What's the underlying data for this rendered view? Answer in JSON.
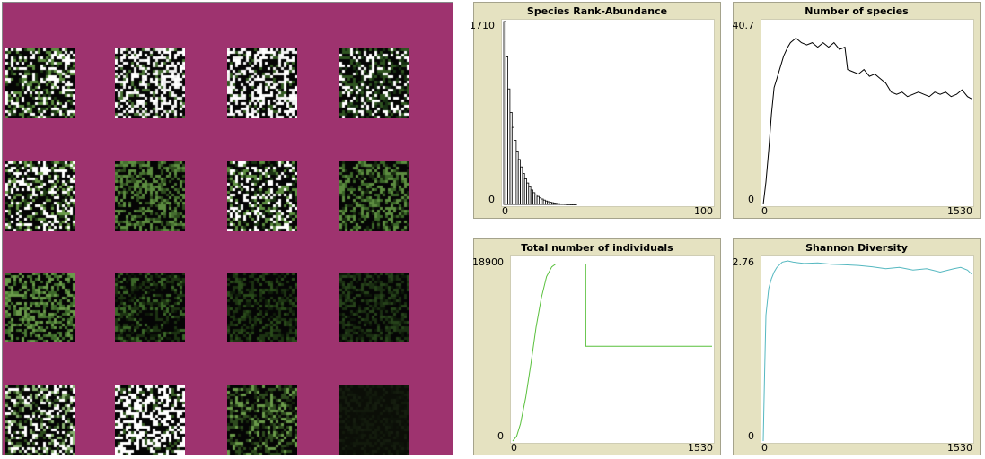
{
  "world": {
    "grid_rows": 4,
    "grid_cols": 4,
    "background_color": "#9e336f",
    "patch_palettes": [
      [
        "#050505",
        "#ffffff",
        "#5c8c40",
        "#1e3a14"
      ],
      [
        "#050505",
        "#ffffff",
        "#eeeeee",
        "#4a7236"
      ],
      [
        "#050505",
        "#ffffff",
        "#f2f2f2",
        "#335a22"
      ],
      [
        "#050505",
        "#ffffff",
        "#2f5421",
        "#173012"
      ],
      [
        "#050505",
        "#ffffff",
        "#6a9a4a",
        "#1e3a14"
      ],
      [
        "#050505",
        "#5c8c40",
        "#2c4a1c",
        "#466e30"
      ],
      [
        "#050505",
        "#ffffff",
        "#5c8c40",
        "#1a3312"
      ],
      [
        "#050505",
        "#5c8c40",
        "#3b6628",
        "#17280f"
      ],
      [
        "#050505",
        "#6a9a4a",
        "#3b6628",
        "#4b7a34"
      ],
      [
        "#050505",
        "#1c3212",
        "#3b6628",
        "#0d1a08"
      ],
      [
        "#050505",
        "#1c3212",
        "#294a1a",
        "#0f1d0a"
      ],
      [
        "#050505",
        "#1a2e12",
        "#26421a",
        "#0c1608"
      ],
      [
        "#050505",
        "#ffffff",
        "#88b070",
        "#2b4a1c"
      ],
      [
        "#050505",
        "#ffffff",
        "#ffffff",
        "#355a24"
      ],
      [
        "#050505",
        "#2d4a1e",
        "#6a9a4a",
        "#16270d"
      ],
      [
        "#0b0e07",
        "#121a0c",
        "#0d1209",
        "#151d0f"
      ]
    ]
  },
  "plots": {
    "rank_abundance": {
      "title": "Species Rank-Abundance",
      "y_max_label": "1710",
      "y_min_label": "0",
      "x_min_label": "0",
      "x_max_label": "100",
      "color": "#000000"
    },
    "species_count": {
      "title": "Number of species",
      "y_max_label": "40.7",
      "y_min_label": "0",
      "x_min_label": "0",
      "x_max_label": "1530",
      "color": "#000000"
    },
    "individuals": {
      "title": "Total number of individuals",
      "y_max_label": "18900",
      "y_min_label": "0",
      "x_min_label": "0",
      "x_max_label": "1530",
      "color": "#59c03c"
    },
    "shannon": {
      "title": "Shannon Diversity",
      "y_max_label": "2.76",
      "y_min_label": "0",
      "x_min_label": "0",
      "x_max_label": "1530",
      "color": "#55b8c0"
    }
  },
  "chart_data": [
    {
      "type": "bar",
      "title": "Species Rank-Abundance",
      "xlim": [
        0,
        100
      ],
      "ylim": [
        0,
        1710
      ],
      "values": [
        1710,
        1380,
        1080,
        860,
        720,
        600,
        500,
        420,
        350,
        290,
        240,
        200,
        165,
        135,
        110,
        90,
        75,
        60,
        50,
        40,
        32,
        25,
        20,
        16,
        12,
        9,
        7,
        5,
        4,
        3,
        2,
        2,
        1,
        1,
        1
      ]
    },
    {
      "type": "line",
      "title": "Number of species",
      "xlim": [
        0,
        1530
      ],
      "ylim": [
        0,
        40.7
      ],
      "x": [
        0,
        20,
        40,
        60,
        80,
        100,
        120,
        150,
        180,
        200,
        240,
        280,
        320,
        360,
        400,
        440,
        480,
        520,
        560,
        600,
        620,
        660,
        700,
        740,
        780,
        820,
        860,
        900,
        940,
        980,
        1020,
        1060,
        1100,
        1140,
        1180,
        1220,
        1260,
        1300,
        1340,
        1380,
        1420,
        1460,
        1500,
        1530
      ],
      "y": [
        0,
        5,
        12,
        20,
        26,
        28,
        30,
        33,
        35,
        36,
        37,
        36,
        35.5,
        36,
        35,
        36,
        35,
        36,
        34.5,
        35,
        30,
        29.5,
        29,
        30,
        28.5,
        29,
        28,
        27,
        25,
        24.5,
        25,
        24,
        24.5,
        25,
        24.5,
        24,
        25,
        24.5,
        25,
        24,
        24.5,
        25.5,
        24,
        23.5
      ]
    },
    {
      "type": "line",
      "title": "Total number of individuals",
      "xlim": [
        0,
        1530
      ],
      "ylim": [
        0,
        18900
      ],
      "x": [
        0,
        30,
        60,
        100,
        140,
        180,
        220,
        260,
        300,
        330,
        360,
        400,
        440,
        480,
        520,
        550,
        560,
        561,
        600,
        700,
        800,
        900,
        1000,
        1100,
        1200,
        1300,
        1400,
        1500,
        1530
      ],
      "y": [
        0,
        500,
        1800,
        4500,
        8000,
        11800,
        14800,
        17000,
        18000,
        18300,
        18300,
        18300,
        18300,
        18300,
        18300,
        18300,
        18300,
        9800,
        9800,
        9800,
        9800,
        9800,
        9800,
        9800,
        9800,
        9800,
        9800,
        9800,
        9800
      ]
    },
    {
      "type": "line",
      "title": "Shannon Diversity",
      "xlim": [
        0,
        1530
      ],
      "ylim": [
        0,
        2.76
      ],
      "x": [
        0,
        10,
        20,
        40,
        60,
        80,
        100,
        140,
        180,
        220,
        300,
        400,
        500,
        600,
        700,
        800,
        900,
        1000,
        1100,
        1200,
        1300,
        1400,
        1450,
        1500,
        1530
      ],
      "y": [
        0,
        1.0,
        1.9,
        2.3,
        2.45,
        2.55,
        2.62,
        2.7,
        2.72,
        2.7,
        2.68,
        2.69,
        2.67,
        2.66,
        2.65,
        2.63,
        2.6,
        2.62,
        2.58,
        2.6,
        2.55,
        2.6,
        2.62,
        2.58,
        2.52
      ]
    }
  ]
}
